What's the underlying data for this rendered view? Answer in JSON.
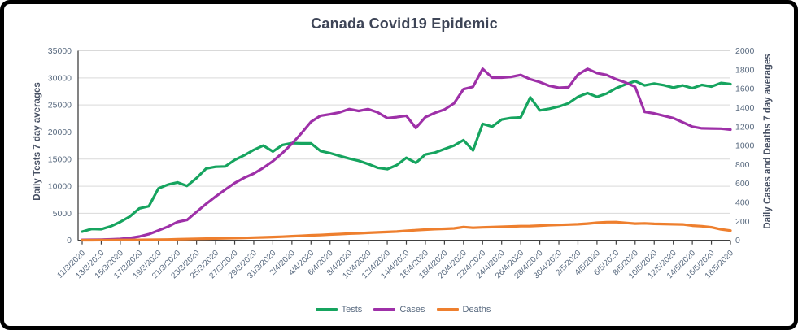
{
  "frame": {
    "border_color": "#000000",
    "background": "#ffffff"
  },
  "chart_data": {
    "type": "line",
    "title": "Canada Covid19 Epidemic",
    "grid": true,
    "legend_position": "bottom",
    "x_tick_labels": [
      "11/3/2020",
      "13/3/2020",
      "15/3/2020",
      "17/3/2020",
      "19/3/2020",
      "21/3/2020",
      "23/3/2020",
      "25/3/2020",
      "27/3/2020",
      "29/3/2020",
      "31/3/2020",
      "2/4/2020",
      "4/4/2020",
      "6/4/2020",
      "8/4/2020",
      "10/4/2020",
      "12/4/2020",
      "14/4/2020",
      "16/4/2020",
      "18/4/2020",
      "20/4/2020",
      "22/4/2020",
      "24/4/2020",
      "26/4/2020",
      "28/4/2020",
      "30/4/2020",
      "2/5/2020",
      "4/5/2020",
      "6/5/2020",
      "8/5/2020",
      "10/5/2020",
      "12/5/2020",
      "14/5/2020",
      "16/5/2020",
      "18/5/2020"
    ],
    "y_left": {
      "label": "Daily Tests 7 day averages",
      "min": 0,
      "max": 35000,
      "step": 5000,
      "tick_labels": [
        "0",
        "5000",
        "10000",
        "15000",
        "20000",
        "25000",
        "30000",
        "35000"
      ]
    },
    "y_right": {
      "label": "Daily Cases and Deaths 7 day averages",
      "min": 0,
      "max": 2000,
      "step": 200,
      "tick_labels": [
        "0",
        "200",
        "400",
        "600",
        "800",
        "1000",
        "1200",
        "1400",
        "1600",
        "1800",
        "2000"
      ]
    },
    "series": [
      {
        "name": "Tests",
        "axis": "left",
        "color": "#16a45f",
        "values": [
          1600,
          2100,
          2050,
          2600,
          3400,
          4400,
          5900,
          6300,
          9600,
          10300,
          10700,
          10050,
          11500,
          13250,
          13580,
          13650,
          14850,
          15700,
          16700,
          17500,
          16400,
          17600,
          17950,
          17900,
          17900,
          16500,
          16100,
          15600,
          15100,
          14700,
          14100,
          13400,
          13150,
          13900,
          15250,
          14300,
          15850,
          16200,
          16850,
          17500,
          18500,
          16600,
          21500,
          21000,
          22300,
          22600,
          22700,
          26400,
          24000,
          24300,
          24700,
          25300,
          26500,
          27200,
          26500,
          27100,
          28100,
          28800,
          29400,
          28600,
          28950,
          28650,
          28200,
          28600,
          28100,
          28700,
          28400,
          29050,
          28850
        ]
      },
      {
        "name": "Cases",
        "axis": "right",
        "color": "#9e30a8",
        "values": [
          5,
          6,
          8,
          10,
          15,
          25,
          40,
          65,
          105,
          145,
          195,
          215,
          300,
          385,
          462,
          535,
          605,
          660,
          705,
          765,
          835,
          920,
          1020,
          1130,
          1250,
          1315,
          1330,
          1350,
          1385,
          1365,
          1385,
          1350,
          1290,
          1300,
          1315,
          1185,
          1300,
          1345,
          1380,
          1445,
          1595,
          1620,
          1810,
          1717,
          1717,
          1725,
          1745,
          1700,
          1670,
          1630,
          1610,
          1615,
          1750,
          1810,
          1765,
          1745,
          1700,
          1665,
          1620,
          1355,
          1340,
          1315,
          1290,
          1245,
          1200,
          1182,
          1180,
          1178,
          1168
        ]
      },
      {
        "name": "Deaths",
        "axis": "right",
        "color": "#ee7f2e",
        "values": [
          2,
          2,
          3,
          3,
          4,
          4,
          5,
          6,
          7,
          9,
          12,
          14,
          16,
          18,
          20,
          22,
          24,
          26,
          29,
          32,
          35,
          39,
          44,
          48,
          53,
          57,
          62,
          66,
          71,
          75,
          80,
          84,
          88,
          93,
          100,
          107,
          113,
          118,
          122,
          126,
          141,
          133,
          137,
          140,
          143,
          147,
          150,
          151,
          155,
          160,
          163,
          166,
          170,
          177,
          186,
          192,
          193,
          184,
          177,
          179,
          174,
          172,
          170,
          168,
          155,
          149,
          138,
          116,
          103
        ]
      }
    ],
    "style": {
      "gridline_color": "#d9d9d9",
      "axis_line_color": "#404040",
      "tick_label_color": "#5a6b80",
      "title_color": "#3e4557",
      "axis_title_color": "#475063"
    }
  }
}
